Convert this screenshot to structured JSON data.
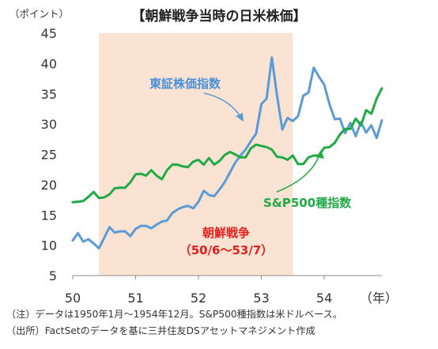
{
  "chart_data": {
    "type": "line",
    "title": "【朝鮮戦争当時の日米株価】",
    "unit_label": "（ポイント）",
    "x_unit_label": "（年）",
    "x_tick_labels": [
      "50",
      "51",
      "52",
      "53",
      "54"
    ],
    "x_tick_years": [
      1950,
      1951,
      1952,
      1953,
      1954
    ],
    "y_ticks": [
      5,
      10,
      15,
      20,
      25,
      30,
      35,
      40,
      45
    ],
    "ylim": [
      5,
      45
    ],
    "grid": false,
    "shaded_period": {
      "label_line1": "朝鮮戦争",
      "label_line2": "（50/6～53/7）",
      "start": "1950-06",
      "end": "1953-07",
      "color": "#FBE3D3"
    },
    "series": [
      {
        "name": "東証株価指数",
        "color": "#5B9BD5",
        "x": [
          "1950-01",
          "1950-02",
          "1950-03",
          "1950-04",
          "1950-05",
          "1950-06",
          "1950-07",
          "1950-08",
          "1950-09",
          "1950-10",
          "1950-11",
          "1950-12",
          "1951-01",
          "1951-02",
          "1951-03",
          "1951-04",
          "1951-05",
          "1951-06",
          "1951-07",
          "1951-08",
          "1951-09",
          "1951-10",
          "1951-11",
          "1951-12",
          "1952-01",
          "1952-02",
          "1952-03",
          "1952-04",
          "1952-05",
          "1952-06",
          "1952-07",
          "1952-08",
          "1952-09",
          "1952-10",
          "1952-11",
          "1952-12",
          "1953-01",
          "1953-02",
          "1953-03",
          "1953-04",
          "1953-05",
          "1953-06",
          "1953-07",
          "1953-08",
          "1953-09",
          "1953-10",
          "1953-11",
          "1953-12",
          "1954-01",
          "1954-02",
          "1954-03",
          "1954-04",
          "1954-05",
          "1954-06",
          "1954-07",
          "1954-08",
          "1954-09",
          "1954-10",
          "1954-11",
          "1954-12"
        ],
        "values": [
          10.8,
          12.0,
          10.6,
          11.0,
          10.3,
          9.5,
          11.2,
          13.0,
          12.1,
          12.3,
          12.3,
          11.5,
          12.7,
          13.2,
          13.2,
          12.8,
          13.4,
          13.9,
          14.1,
          15.3,
          15.9,
          16.3,
          16.5,
          16.1,
          17.2,
          19.0,
          18.3,
          18.1,
          19.2,
          20.4,
          22.0,
          23.6,
          24.8,
          25.8,
          27.2,
          28.4,
          33.3,
          34.2,
          41.0,
          34.6,
          29.1,
          31.0,
          30.5,
          31.3,
          34.7,
          35.2,
          39.3,
          37.8,
          36.5,
          33.3,
          30.8,
          30.9,
          28.5,
          30.2,
          28.0,
          30.3,
          28.6,
          29.8,
          27.7,
          30.6
        ]
      },
      {
        "name": "S&P500種指数",
        "color": "#1FAA46",
        "x": [
          "1950-01",
          "1950-02",
          "1950-03",
          "1950-04",
          "1950-05",
          "1950-06",
          "1950-07",
          "1950-08",
          "1950-09",
          "1950-10",
          "1950-11",
          "1950-12",
          "1951-01",
          "1951-02",
          "1951-03",
          "1951-04",
          "1951-05",
          "1951-06",
          "1951-07",
          "1951-08",
          "1951-09",
          "1951-10",
          "1951-11",
          "1951-12",
          "1952-01",
          "1952-02",
          "1952-03",
          "1952-04",
          "1952-05",
          "1952-06",
          "1952-07",
          "1952-08",
          "1952-09",
          "1952-10",
          "1952-11",
          "1952-12",
          "1953-01",
          "1953-02",
          "1953-03",
          "1953-04",
          "1953-05",
          "1953-06",
          "1953-07",
          "1953-08",
          "1953-09",
          "1953-10",
          "1953-11",
          "1953-12",
          "1954-01",
          "1954-02",
          "1954-03",
          "1954-04",
          "1954-05",
          "1954-06",
          "1954-07",
          "1954-08",
          "1954-09",
          "1954-10",
          "1954-11",
          "1954-12"
        ],
        "values": [
          17.1,
          17.2,
          17.3,
          18.0,
          18.8,
          17.8,
          17.9,
          18.4,
          19.4,
          19.5,
          19.5,
          20.4,
          21.7,
          21.8,
          21.5,
          22.4,
          21.5,
          20.9,
          22.4,
          23.3,
          23.3,
          23.0,
          22.9,
          23.8,
          24.1,
          23.3,
          24.4,
          23.3,
          23.9,
          24.9,
          25.4,
          25.0,
          24.5,
          24.5,
          26.0,
          26.6,
          26.4,
          26.2,
          25.8,
          24.6,
          24.5,
          24.1,
          24.8,
          23.4,
          23.4,
          24.5,
          24.8,
          24.8,
          26.1,
          26.2,
          26.9,
          28.3,
          29.2,
          29.2,
          30.9,
          29.8,
          32.3,
          31.7,
          34.2,
          35.9
        ]
      }
    ]
  },
  "annotations": {
    "tse_label": "東証株価指数",
    "sp_label": "S&P500種指数"
  },
  "footnotes": {
    "note": "（注）データは1950年1月～1954年12月。S&P500種指数は米ドルベース。",
    "source": "（出所）FactSetのデータを基に三井住友DSアセットマネジメント作成"
  }
}
